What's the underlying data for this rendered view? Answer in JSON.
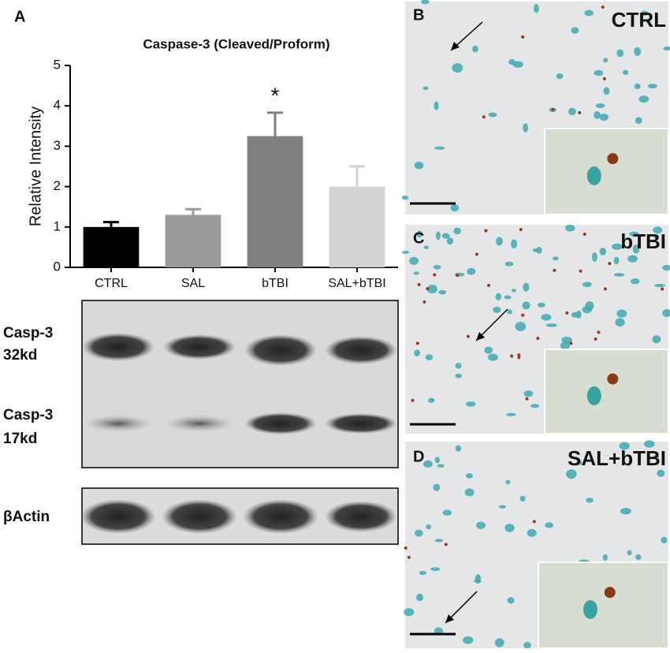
{
  "chart_data": {
    "type": "bar",
    "title": "Caspase-3 (Cleaved/Proform)",
    "y_label": "Relative Intensity",
    "categories": [
      "CTRL",
      "SAL",
      "bTBI",
      "SAL+bTBI"
    ],
    "values": [
      1.0,
      1.3,
      3.25,
      2.0
    ],
    "errors": [
      0.12,
      0.14,
      0.58,
      0.5
    ],
    "colors": [
      "#000000",
      "#9a9a9a",
      "#7f7f7f",
      "#d2d2d2"
    ],
    "ylim": [
      0,
      5
    ],
    "yticks": [
      0,
      1,
      2,
      3,
      4,
      5
    ],
    "annotations": [
      {
        "text": "*",
        "category": "bTBI"
      }
    ]
  },
  "panels": {
    "a": "A",
    "b": "B",
    "c": "C",
    "d": "D"
  },
  "blot": {
    "casp_32": [
      "Casp-3",
      "32kd"
    ],
    "casp_17": [
      "Casp-3",
      "17kd"
    ],
    "actin": "βActin"
  },
  "micrographs": {
    "b": "CTRL",
    "c": "bTBI",
    "d": "SAL+bTBI"
  }
}
